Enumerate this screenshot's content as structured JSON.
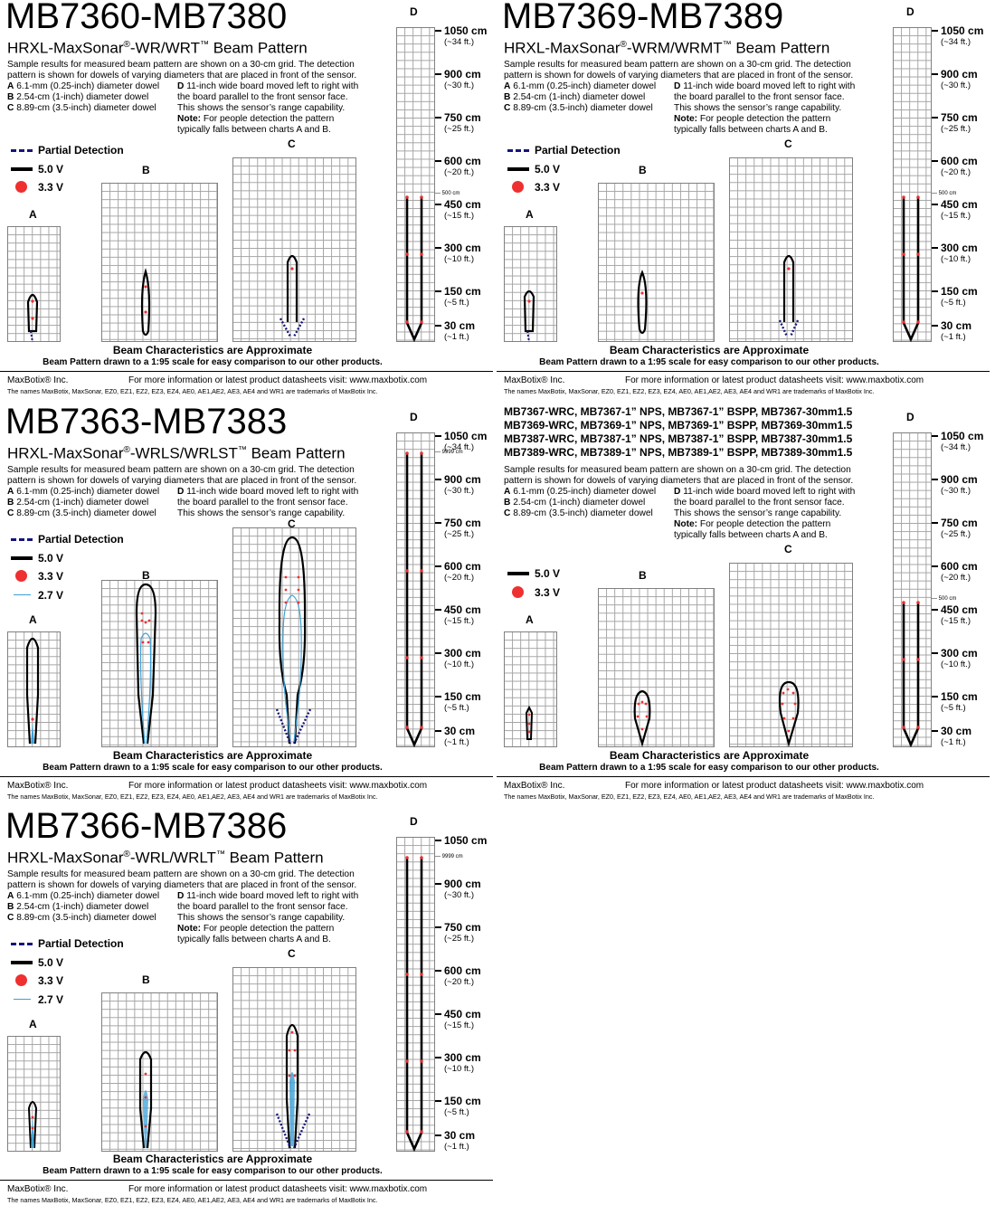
{
  "common": {
    "description": "Sample results for measured beam pattern are shown on a 30-cm grid. The detection pattern is shown for dowels of varying diameters that are placed in front of the sensor.",
    "dowel_a": "6.1-mm (0.25-inch) diameter dowel",
    "dowel_b": "2.54-cm (1-inch) diameter dowel",
    "dowel_c": "8.89-cm (3.5-inch) diameter dowel",
    "letter_a": "A",
    "letter_b": "B",
    "letter_c": "C",
    "letter_d": "D",
    "board_d_1": "11-inch wide board moved left to right with",
    "board_d_2": "the board parallel to the front sensor face.",
    "board_d_3": "This shows the sensor’s range capability.",
    "note_label": "Note:",
    "note_text_1": "For people detection the pattern",
    "note_text_2": "typically falls between charts A and B.",
    "legend_partial": "Partial Detection",
    "legend_5v": "5.0 V",
    "legend_33v": "3.3 V",
    "legend_27v": "2.7 V",
    "beam_char": "Beam Characteristics are Approximate",
    "scale_note": "Beam Pattern drawn to a 1:95 scale for easy comparison to our other products.",
    "company": "MaxBotix® Inc.",
    "website": "For more information or latest product datasheets visit:  www.maxbotix.com",
    "trademark": "The names MaxBotix, MaxSonar, EZ0, EZ1, EZ2, EZ3, EZ4, AE0, AE1,AE2, AE3, AE4 and WR1 are trademarks of MaxBotix Inc.",
    "distance_scale": [
      {
        "cm": "1050 cm",
        "ft": "(~34 ft.)"
      },
      {
        "cm": "900 cm",
        "ft": "(~30 ft.)"
      },
      {
        "cm": "750 cm",
        "ft": "(~25 ft.)"
      },
      {
        "cm": "600 cm",
        "ft": "(~20 ft.)"
      },
      {
        "cm": "450 cm",
        "ft": "(~15 ft.)"
      },
      {
        "cm": "300 cm",
        "ft": "(~10 ft.)"
      },
      {
        "cm": "150 cm",
        "ft": "(~5 ft.)"
      },
      {
        "cm": "30 cm",
        "ft": "(~1 ft.)"
      }
    ],
    "small_label_500": "500 cm",
    "small_label_9999": "9999 cm",
    "colors": {
      "line_5v": "#000000",
      "dot_33v": "#ee3030",
      "line_27v": "#3aa0d8",
      "partial": "#14147a",
      "grid": "#a4a4a4"
    }
  },
  "panels": [
    {
      "title": "MB7360-MB7380",
      "subtitle_pre": "HRXL-MaxSonar",
      "subtitle_mid": "-WR/WRT",
      "subtitle_post": " Beam Pattern"
    },
    {
      "title": "MB7369-MB7389",
      "subtitle_pre": "HRXL-MaxSonar",
      "subtitle_mid": "-WRM/WRMT",
      "subtitle_post": " Beam Pattern"
    },
    {
      "title": "MB7363-MB7383",
      "subtitle_pre": "HRXL-MaxSonar",
      "subtitle_mid": "-WRLS/WRLST",
      "subtitle_post": " Beam Pattern"
    },
    {
      "title_lines": [
        "MB7367-WRC, MB7367-1” NPS, MB7367-1” BSPP, MB7367-30mm1.5",
        "MB7369-WRC, MB7369-1” NPS, MB7369-1” BSPP, MB7369-30mm1.5",
        "MB7387-WRC, MB7387-1” NPS, MB7387-1” BSPP, MB7387-30mm1.5",
        "MB7389-WRC, MB7389-1” NPS, MB7389-1” BSPP, MB7389-30mm1.5"
      ]
    },
    {
      "title": "MB7366-MB7386",
      "subtitle_pre": "HRXL-MaxSonar",
      "subtitle_mid": "-WRL/WRLT",
      "subtitle_post": " Beam Pattern"
    }
  ],
  "glyphs": {
    "registered": "®",
    "trademark": "™"
  }
}
